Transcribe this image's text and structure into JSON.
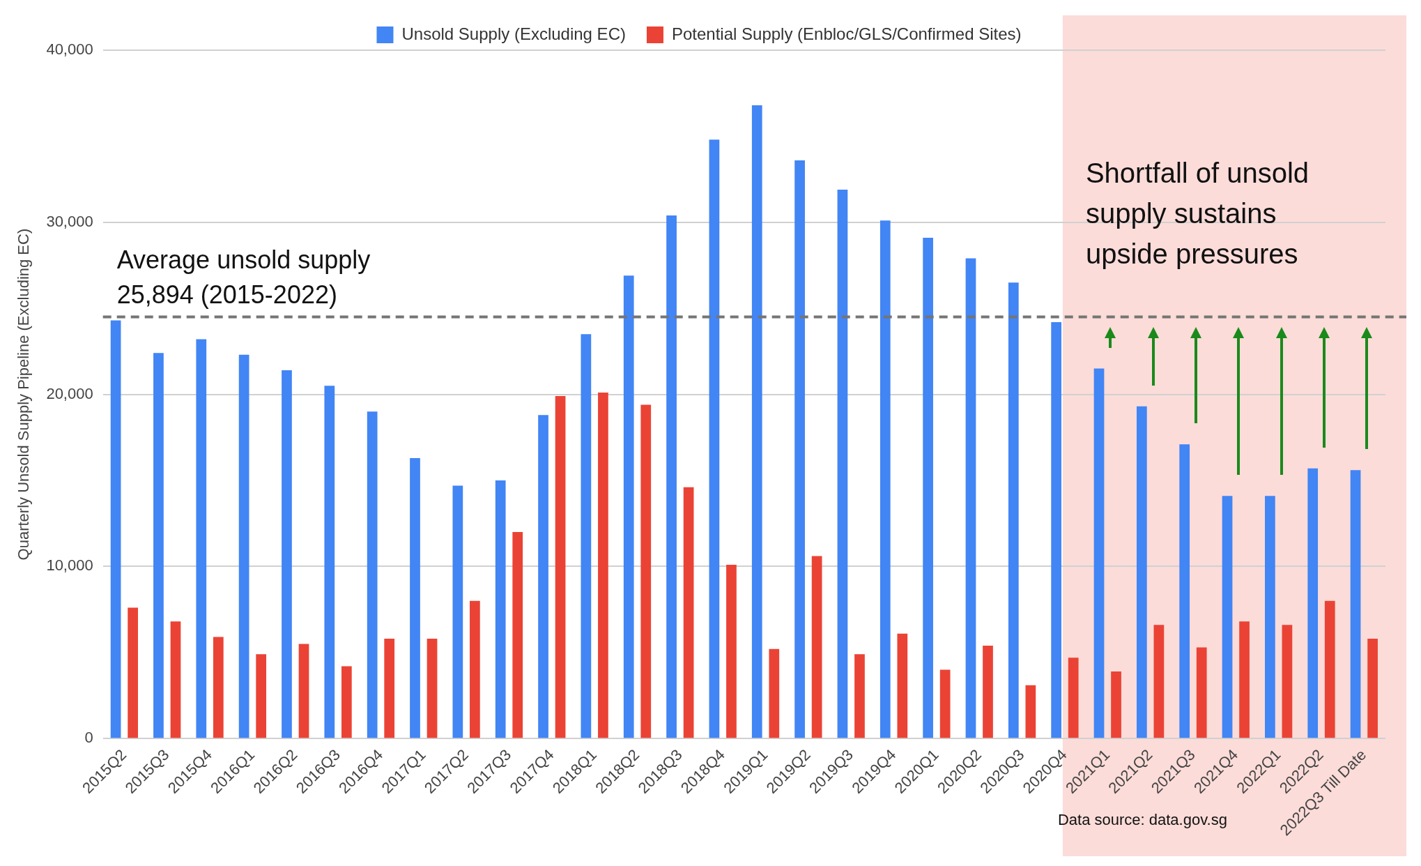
{
  "chart_data": {
    "type": "bar",
    "ylabel": "Quarterly Unsold Supply Pipeline (Excluding EC)",
    "categories": [
      "2015Q2",
      "2015Q3",
      "2015Q4",
      "2016Q1",
      "2016Q2",
      "2016Q3",
      "2016Q4",
      "2017Q1",
      "2017Q2",
      "2017Q3",
      "2017Q4",
      "2018Q1",
      "2018Q2",
      "2018Q3",
      "2018Q4",
      "2019Q1",
      "2019Q2",
      "2019Q3",
      "2019Q4",
      "2020Q1",
      "2020Q2",
      "2020Q3",
      "2020Q4",
      "2021Q1",
      "2021Q2",
      "2021Q3",
      "2021Q4",
      "2022Q1",
      "2022Q2",
      "2022Q3 Till Date"
    ],
    "series": [
      {
        "name": "Unsold Supply (Excluding EC)",
        "color": "#4285f4",
        "values": [
          24300,
          22400,
          23200,
          22300,
          21400,
          20500,
          19000,
          16300,
          14700,
          15000,
          18800,
          23500,
          26900,
          30400,
          34800,
          36800,
          33600,
          31900,
          30100,
          29100,
          27900,
          26500,
          24200,
          21500,
          19300,
          17100,
          14100,
          14100,
          15700,
          15600
        ]
      },
      {
        "name": "Potential Supply (Enbloc/GLS/Confirmed Sites)",
        "color": "#ea4335",
        "values": [
          7600,
          6800,
          5900,
          4900,
          5500,
          4200,
          5800,
          5800,
          8000,
          12000,
          19900,
          20100,
          19400,
          14600,
          10100,
          5200,
          10600,
          4900,
          6100,
          4000,
          5400,
          3100,
          4700,
          3900,
          6600,
          5300,
          6800,
          6600,
          8000,
          5800
        ]
      }
    ],
    "ylim": [
      0,
      40000
    ],
    "yticks": [
      {
        "value": 0,
        "label": "0"
      },
      {
        "value": 10000,
        "label": "10,000"
      },
      {
        "value": 20000,
        "label": "20,000"
      },
      {
        "value": 30000,
        "label": "30,000"
      },
      {
        "value": 40000,
        "label": "40,000"
      }
    ],
    "grid": "y",
    "legend": "top",
    "ref_lines": [
      {
        "axis": "y",
        "value": 24500,
        "color": "#757575",
        "line_style": "dashed"
      }
    ],
    "bands": [
      {
        "axis": "x",
        "from": "2020Q4",
        "to": "2022Q3 Till Date",
        "color": "#fbdcd9"
      }
    ],
    "annotations": [
      "Average unsold supply\n25,894 (2015-2022)",
      "Shortfall of unsold\nsupply sustains\nupside pressures",
      "Data source: data.gov.sg"
    ]
  }
}
